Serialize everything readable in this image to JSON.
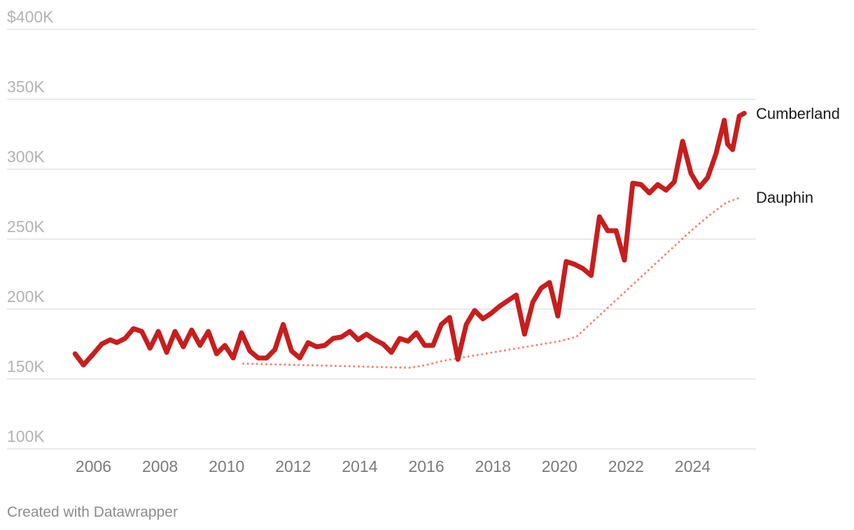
{
  "chart_data": {
    "type": "line",
    "title": "",
    "xlabel": "",
    "ylabel": "",
    "ylim": [
      100000,
      400000
    ],
    "xlim": [
      2005.0,
      2025.9
    ],
    "grid": true,
    "y_ticks": [
      {
        "value": 400000,
        "label": "$400K"
      },
      {
        "value": 350000,
        "label": "350K"
      },
      {
        "value": 300000,
        "label": "300K"
      },
      {
        "value": 250000,
        "label": "250K"
      },
      {
        "value": 200000,
        "label": "200K"
      },
      {
        "value": 150000,
        "label": "150K"
      },
      {
        "value": 100000,
        "label": "100K"
      }
    ],
    "x_ticks": [
      {
        "value": 2006,
        "label": "2006"
      },
      {
        "value": 2008,
        "label": "2008"
      },
      {
        "value": 2010,
        "label": "2010"
      },
      {
        "value": 2012,
        "label": "2012"
      },
      {
        "value": 2014,
        "label": "2014"
      },
      {
        "value": 2016,
        "label": "2016"
      },
      {
        "value": 2018,
        "label": "2018"
      },
      {
        "value": 2020,
        "label": "2020"
      },
      {
        "value": 2022,
        "label": "2022"
      },
      {
        "value": 2024,
        "label": "2024"
      }
    ],
    "series": [
      {
        "name": "Cumberland",
        "color": "#c71e1d",
        "style": "solid",
        "points": [
          [
            2005.45,
            168000
          ],
          [
            2005.7,
            160000
          ],
          [
            2006.0,
            168000
          ],
          [
            2006.25,
            175000
          ],
          [
            2006.5,
            178000
          ],
          [
            2006.7,
            176000
          ],
          [
            2006.95,
            179000
          ],
          [
            2007.2,
            186000
          ],
          [
            2007.45,
            184000
          ],
          [
            2007.7,
            172000
          ],
          [
            2007.95,
            184000
          ],
          [
            2008.2,
            169000
          ],
          [
            2008.45,
            184000
          ],
          [
            2008.7,
            173000
          ],
          [
            2008.95,
            185000
          ],
          [
            2009.2,
            174000
          ],
          [
            2009.45,
            184000
          ],
          [
            2009.7,
            168000
          ],
          [
            2009.95,
            174000
          ],
          [
            2010.2,
            165000
          ],
          [
            2010.45,
            183000
          ],
          [
            2010.7,
            170000
          ],
          [
            2010.95,
            165000
          ],
          [
            2011.2,
            165000
          ],
          [
            2011.45,
            171000
          ],
          [
            2011.7,
            189000
          ],
          [
            2011.95,
            170000
          ],
          [
            2012.2,
            165000
          ],
          [
            2012.45,
            176000
          ],
          [
            2012.7,
            173000
          ],
          [
            2012.95,
            174000
          ],
          [
            2013.2,
            179000
          ],
          [
            2013.45,
            180000
          ],
          [
            2013.7,
            184000
          ],
          [
            2013.95,
            178000
          ],
          [
            2014.2,
            182000
          ],
          [
            2014.45,
            178000
          ],
          [
            2014.7,
            175000
          ],
          [
            2014.95,
            169000
          ],
          [
            2015.2,
            179000
          ],
          [
            2015.45,
            177000
          ],
          [
            2015.7,
            183000
          ],
          [
            2015.95,
            174000
          ],
          [
            2016.2,
            174000
          ],
          [
            2016.45,
            189000
          ],
          [
            2016.7,
            194000
          ],
          [
            2016.95,
            164000
          ],
          [
            2017.2,
            189000
          ],
          [
            2017.45,
            199000
          ],
          [
            2017.7,
            193000
          ],
          [
            2017.95,
            197000
          ],
          [
            2018.2,
            202000
          ],
          [
            2018.45,
            206000
          ],
          [
            2018.7,
            210000
          ],
          [
            2018.95,
            182000
          ],
          [
            2019.2,
            205000
          ],
          [
            2019.45,
            215000
          ],
          [
            2019.7,
            219000
          ],
          [
            2019.95,
            195000
          ],
          [
            2020.2,
            234000
          ],
          [
            2020.45,
            232000
          ],
          [
            2020.7,
            229000
          ],
          [
            2020.95,
            224000
          ],
          [
            2021.2,
            266000
          ],
          [
            2021.45,
            256000
          ],
          [
            2021.7,
            256000
          ],
          [
            2021.95,
            235000
          ],
          [
            2022.2,
            290000
          ],
          [
            2022.45,
            289000
          ],
          [
            2022.7,
            283000
          ],
          [
            2022.95,
            289000
          ],
          [
            2023.2,
            285000
          ],
          [
            2023.45,
            291000
          ],
          [
            2023.7,
            320000
          ],
          [
            2023.95,
            297000
          ],
          [
            2024.2,
            287000
          ],
          [
            2024.45,
            294000
          ],
          [
            2024.7,
            311000
          ],
          [
            2024.95,
            335000
          ],
          [
            2025.05,
            318000
          ],
          [
            2025.2,
            314000
          ],
          [
            2025.4,
            338000
          ],
          [
            2025.55,
            340000
          ]
        ]
      },
      {
        "name": "Dauphin",
        "color": "#f4826a",
        "style": "dotted",
        "points": [
          [
            2010.5,
            161000
          ],
          [
            2015.5,
            158000
          ],
          [
            2016.0,
            160000
          ],
          [
            2016.5,
            163000
          ],
          [
            2017.0,
            165000
          ],
          [
            2017.5,
            167000
          ],
          [
            2018.0,
            169000
          ],
          [
            2018.5,
            171000
          ],
          [
            2019.0,
            173000
          ],
          [
            2019.5,
            175000
          ],
          [
            2020.0,
            177000
          ],
          [
            2020.5,
            180000
          ],
          [
            2021.0,
            191000
          ],
          [
            2021.5,
            202000
          ],
          [
            2022.0,
            213000
          ],
          [
            2022.5,
            224000
          ],
          [
            2023.0,
            235000
          ],
          [
            2023.5,
            246000
          ],
          [
            2024.0,
            257000
          ],
          [
            2024.5,
            267000
          ],
          [
            2025.0,
            276000
          ],
          [
            2025.45,
            280000
          ]
        ]
      }
    ]
  },
  "footer": {
    "credit": "Created with Datawrapper"
  }
}
